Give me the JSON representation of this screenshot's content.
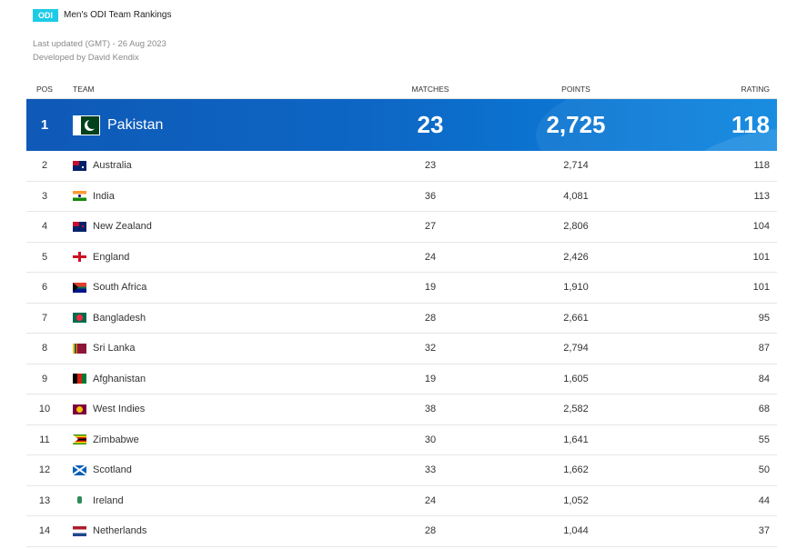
{
  "header": {
    "badge": "ODI",
    "title": "Men's ODI Team Rankings",
    "last_updated": "Last updated (GMT) - 26 Aug 2023",
    "developed_by": "Developed by David Kendix"
  },
  "columns": {
    "pos": "POS",
    "team": "TEAM",
    "matches": "MATCHES",
    "points": "POINTS",
    "rating": "RATING"
  },
  "top": {
    "pos": "1",
    "team": "Pakistan",
    "matches": "23",
    "points": "2,725",
    "rating": "118",
    "flag": "pakistan-flag"
  },
  "rows": [
    {
      "pos": "2",
      "team": "Australia",
      "matches": "23",
      "points": "2,714",
      "rating": "118",
      "flag": "australia-flag"
    },
    {
      "pos": "3",
      "team": "India",
      "matches": "36",
      "points": "4,081",
      "rating": "113",
      "flag": "india-flag"
    },
    {
      "pos": "4",
      "team": "New Zealand",
      "matches": "27",
      "points": "2,806",
      "rating": "104",
      "flag": "new-zealand-flag"
    },
    {
      "pos": "5",
      "team": "England",
      "matches": "24",
      "points": "2,426",
      "rating": "101",
      "flag": "england-flag"
    },
    {
      "pos": "6",
      "team": "South Africa",
      "matches": "19",
      "points": "1,910",
      "rating": "101",
      "flag": "south-africa-flag"
    },
    {
      "pos": "7",
      "team": "Bangladesh",
      "matches": "28",
      "points": "2,661",
      "rating": "95",
      "flag": "bangladesh-flag"
    },
    {
      "pos": "8",
      "team": "Sri Lanka",
      "matches": "32",
      "points": "2,794",
      "rating": "87",
      "flag": "sri-lanka-flag"
    },
    {
      "pos": "9",
      "team": "Afghanistan",
      "matches": "19",
      "points": "1,605",
      "rating": "84",
      "flag": "afghanistan-flag"
    },
    {
      "pos": "10",
      "team": "West Indies",
      "matches": "38",
      "points": "2,582",
      "rating": "68",
      "flag": "west-indies-flag"
    },
    {
      "pos": "11",
      "team": "Zimbabwe",
      "matches": "30",
      "points": "1,641",
      "rating": "55",
      "flag": "zimbabwe-flag"
    },
    {
      "pos": "12",
      "team": "Scotland",
      "matches": "33",
      "points": "1,662",
      "rating": "50",
      "flag": "scotland-flag"
    },
    {
      "pos": "13",
      "team": "Ireland",
      "matches": "24",
      "points": "1,052",
      "rating": "44",
      "flag": "ireland-flag"
    },
    {
      "pos": "14",
      "team": "Netherlands",
      "matches": "28",
      "points": "1,044",
      "rating": "37",
      "flag": "netherlands-flag"
    }
  ],
  "colors": {
    "badge": "#1ecbe6",
    "top_row_start": "#0f59b7",
    "top_row_end": "#0b86e0"
  }
}
